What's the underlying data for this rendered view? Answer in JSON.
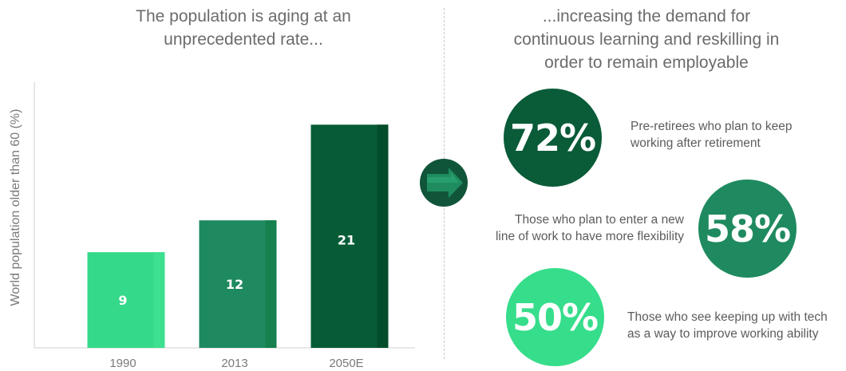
{
  "left_title": "The population is aging at an\nunprecedented rate...",
  "right_title": "...increasing the demand for\ncontinuous learning and reskilling in\norder to remain employable",
  "chart_data": {
    "type": "bar",
    "title": "",
    "xlabel": "",
    "ylabel": "World population older than 60 (%)",
    "categories": [
      "1990",
      "2013",
      "2050E"
    ],
    "values": [
      9,
      12,
      21
    ],
    "ylim": [
      0,
      25
    ],
    "bar_colors": [
      "#34d98a",
      "#1f8a5f",
      "#075c36"
    ],
    "bar_shade_colors": [
      "#3de08f",
      "#16804f",
      "#034d2b"
    ],
    "grid": false
  },
  "arrow": {
    "icon": "right-arrow-icon",
    "circle_color": "#10553a",
    "arrow_color": "#1e8c5e"
  },
  "stats": [
    {
      "value": "72%",
      "description": "Pre-retirees who plan to keep\nworking after retirement",
      "color": "#0a5b38"
    },
    {
      "value": "58%",
      "description": "Those who plan to enter a new\nline of work to have more flexibility",
      "color": "#1f8a5f"
    },
    {
      "value": "50%",
      "description": "Those who see keeping up with tech\nas a way to improve working ability",
      "color": "#36dd8b"
    }
  ]
}
